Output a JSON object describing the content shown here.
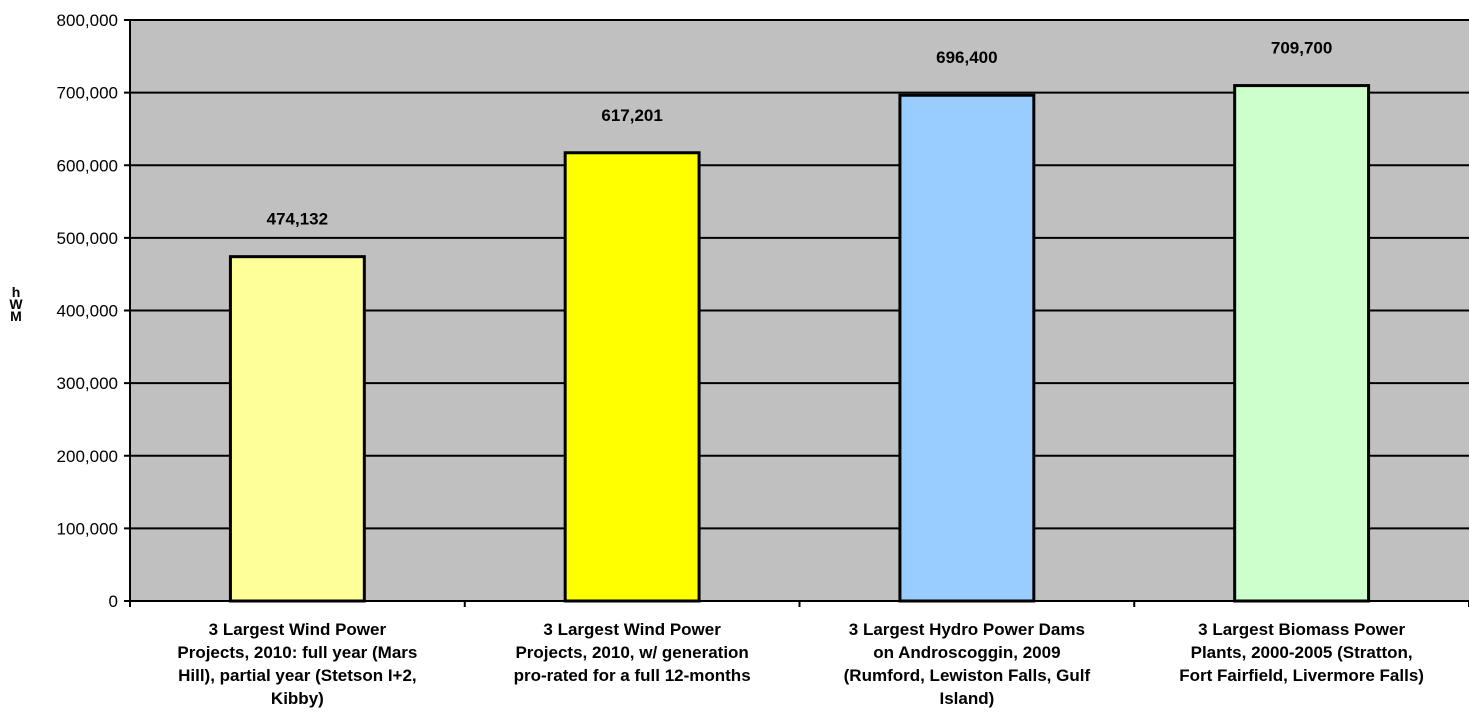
{
  "chart_data": {
    "type": "bar",
    "ylabel": "MWh",
    "ylim": [
      0,
      800000
    ],
    "yticks": [
      0,
      100000,
      200000,
      300000,
      400000,
      500000,
      600000,
      700000,
      800000
    ],
    "ytick_labels": [
      "0",
      "100,000",
      "200,000",
      "300,000",
      "400,000",
      "500,000",
      "600,000",
      "700,000",
      "800,000"
    ],
    "grid": true,
    "plot_background": "#c0c0c0",
    "categories": [
      "3 Largest Wind Power Projects, 2010: full year (Mars Hill), partial year (Stetson I+2, Kibby)",
      "3 Largest Wind Power Projects, 2010, w/ generation pro-rated for a full 12-months",
      "3 Largest Hydro Power Dams on Androscoggin, 2009 (Rumford, Lewiston Falls, Gulf Island)",
      "3 Largest Biomass Power Plants, 2000-2005 (Stratton, Fort Fairfield, Livermore Falls)"
    ],
    "category_lines": [
      [
        "3 Largest Wind Power",
        "Projects, 2010: full year (Mars",
        "Hill), partial year (Stetson I+2,",
        "Kibby)"
      ],
      [
        "3 Largest Wind Power",
        "Projects, 2010, w/ generation",
        "pro-rated for a full 12-months"
      ],
      [
        "3 Largest Hydro Power Dams",
        "on Androscoggin, 2009",
        "(Rumford, Lewiston Falls, Gulf",
        "Island)"
      ],
      [
        "3 Largest Biomass Power",
        "Plants, 2000-2005 (Stratton,",
        "Fort Fairfield, Livermore Falls)"
      ]
    ],
    "values": [
      474132,
      617201,
      696400,
      709700
    ],
    "data_labels": [
      "474,132",
      "617,201",
      "696,400",
      "709,700"
    ],
    "bar_colors": [
      "#ffff99",
      "#ffff00",
      "#99ccff",
      "#ccffcc"
    ]
  }
}
